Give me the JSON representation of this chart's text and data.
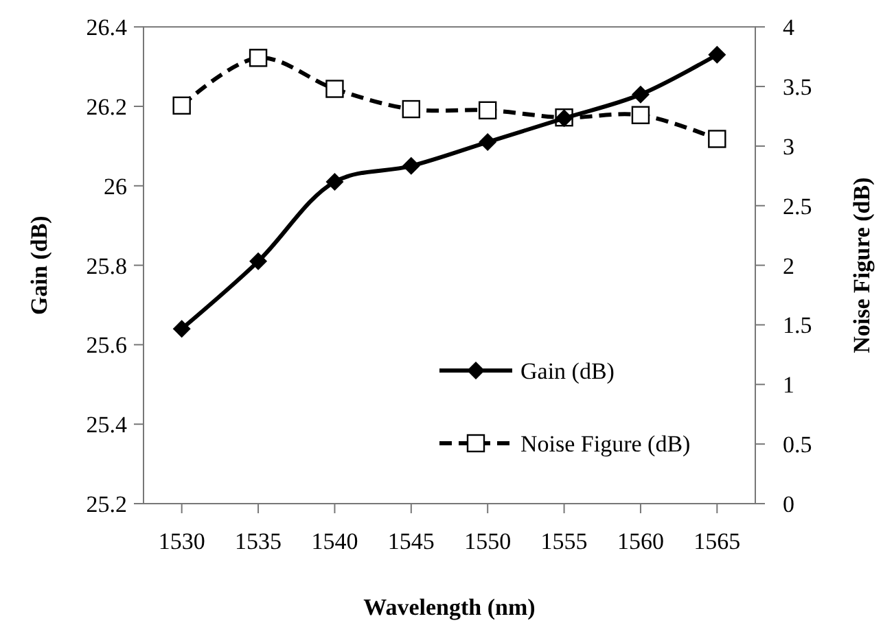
{
  "chart_data": {
    "type": "line",
    "xlabel": "Wavelength (nm)",
    "ylabel": "Gain (dB)",
    "y2label": "Noise Figure (dB)",
    "categories": [
      "1530",
      "1535",
      "1540",
      "1545",
      "1550",
      "1555",
      "1560",
      "1565"
    ],
    "series": [
      {
        "name": "Gain (dB)",
        "color": "#000000",
        "marker": "diamond",
        "line_style": "solid",
        "values": [
          25.64,
          25.81,
          26.01,
          26.05,
          26.11,
          26.17,
          26.23,
          26.33
        ]
      },
      {
        "name": "Noise Figure (dB)",
        "color": "#000000",
        "marker": "square",
        "line_style": "dashed",
        "axis": "y2",
        "values": [
          3.34,
          3.74,
          3.48,
          3.31,
          3.3,
          3.24,
          3.26,
          3.06
        ]
      }
    ],
    "ylim": [
      25.2,
      26.4
    ],
    "yticks": [
      25.2,
      25.4,
      25.6,
      25.8,
      26,
      26.2,
      26.4
    ],
    "y2lim": [
      0,
      4
    ],
    "y2ticks": [
      0,
      0.5,
      1,
      1.5,
      2,
      2.5,
      3,
      3.5,
      4
    ],
    "grid": false,
    "legend": "bottom right"
  }
}
